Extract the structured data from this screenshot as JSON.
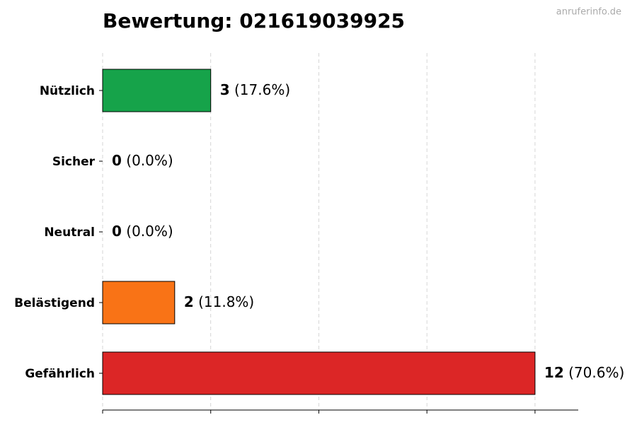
{
  "chart_data": {
    "type": "barh",
    "title": "Bewertung: 021619039925",
    "watermark": "anruferinfo.de",
    "categories": [
      "Nützlich",
      "Sicher",
      "Neutral",
      "Belästigend",
      "Gefährlich"
    ],
    "values": [
      3,
      0,
      0,
      2,
      12
    ],
    "percent_labels": [
      "(17.6%)",
      "(0.0%)",
      "(0.0%)",
      "(11.8%)",
      "(70.6%)"
    ],
    "colors": [
      "#16a34a",
      "#22c55e",
      "#9ca3af",
      "#f97316",
      "#dc2626"
    ],
    "xlim": [
      0,
      13.2
    ],
    "xticks": [
      0,
      3,
      6,
      9,
      12
    ],
    "grid": true
  }
}
